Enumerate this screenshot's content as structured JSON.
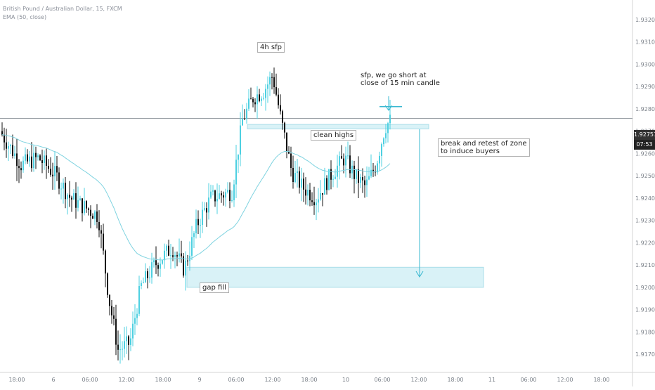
{
  "header": {
    "symbol_title": "British Pound / Australian Dollar, 15, FXCM",
    "indicator": "EMA (50, close)"
  },
  "price_badge": {
    "last_price": "1.92757",
    "countdown": "07:53"
  },
  "annotations": {
    "h4_sfp": "4h sfp",
    "short_note_line1": "sfp, we go short at",
    "short_note_line2": "close of 15 min candle",
    "clean_highs": "clean highs",
    "retest_line1": "break and retest of zone",
    "retest_line2": "to induce buyers",
    "gap_fill": "gap fill"
  },
  "colors": {
    "bull_candle": "#4dd0e1",
    "bear_candle": "#111111",
    "ema": "#7fd3e0",
    "zone_fill": "#d9f2f7",
    "zone_border": "#a9dde8",
    "arrow": "#39b8d0",
    "price_line": "#9aa0a6",
    "price_badge": "#333333",
    "countdown_badge": "#222222"
  },
  "chart_data": {
    "type": "candlestick",
    "symbol": "GBPAUD",
    "interval": "15",
    "ylim": [
      1.9165,
      1.9325
    ],
    "y_ticks": [
      "1.93200",
      "1.93100",
      "1.93000",
      "1.92900",
      "1.92800",
      "1.92700",
      "1.92600",
      "1.92500",
      "1.92400",
      "1.92300",
      "1.92200",
      "1.92100",
      "1.92000",
      "1.91900",
      "1.91800",
      "1.91700"
    ],
    "x_ticks": [
      "18:00",
      "6",
      "06:00",
      "12:00",
      "18:00",
      "9",
      "06:00",
      "12:00",
      "18:00",
      "10",
      "06:00",
      "12:00",
      "18:00",
      "11",
      "06:00",
      "12:00",
      "18:00"
    ],
    "last_price": 1.92757,
    "zones": [
      {
        "label": "clean highs",
        "from": 1.9271,
        "to": 1.9273
      },
      {
        "label": "gap fill",
        "from": 1.92,
        "to": 1.9209
      }
    ],
    "key_levels": {
      "sfp_high": 1.9281,
      "target": 1.921
    }
  }
}
